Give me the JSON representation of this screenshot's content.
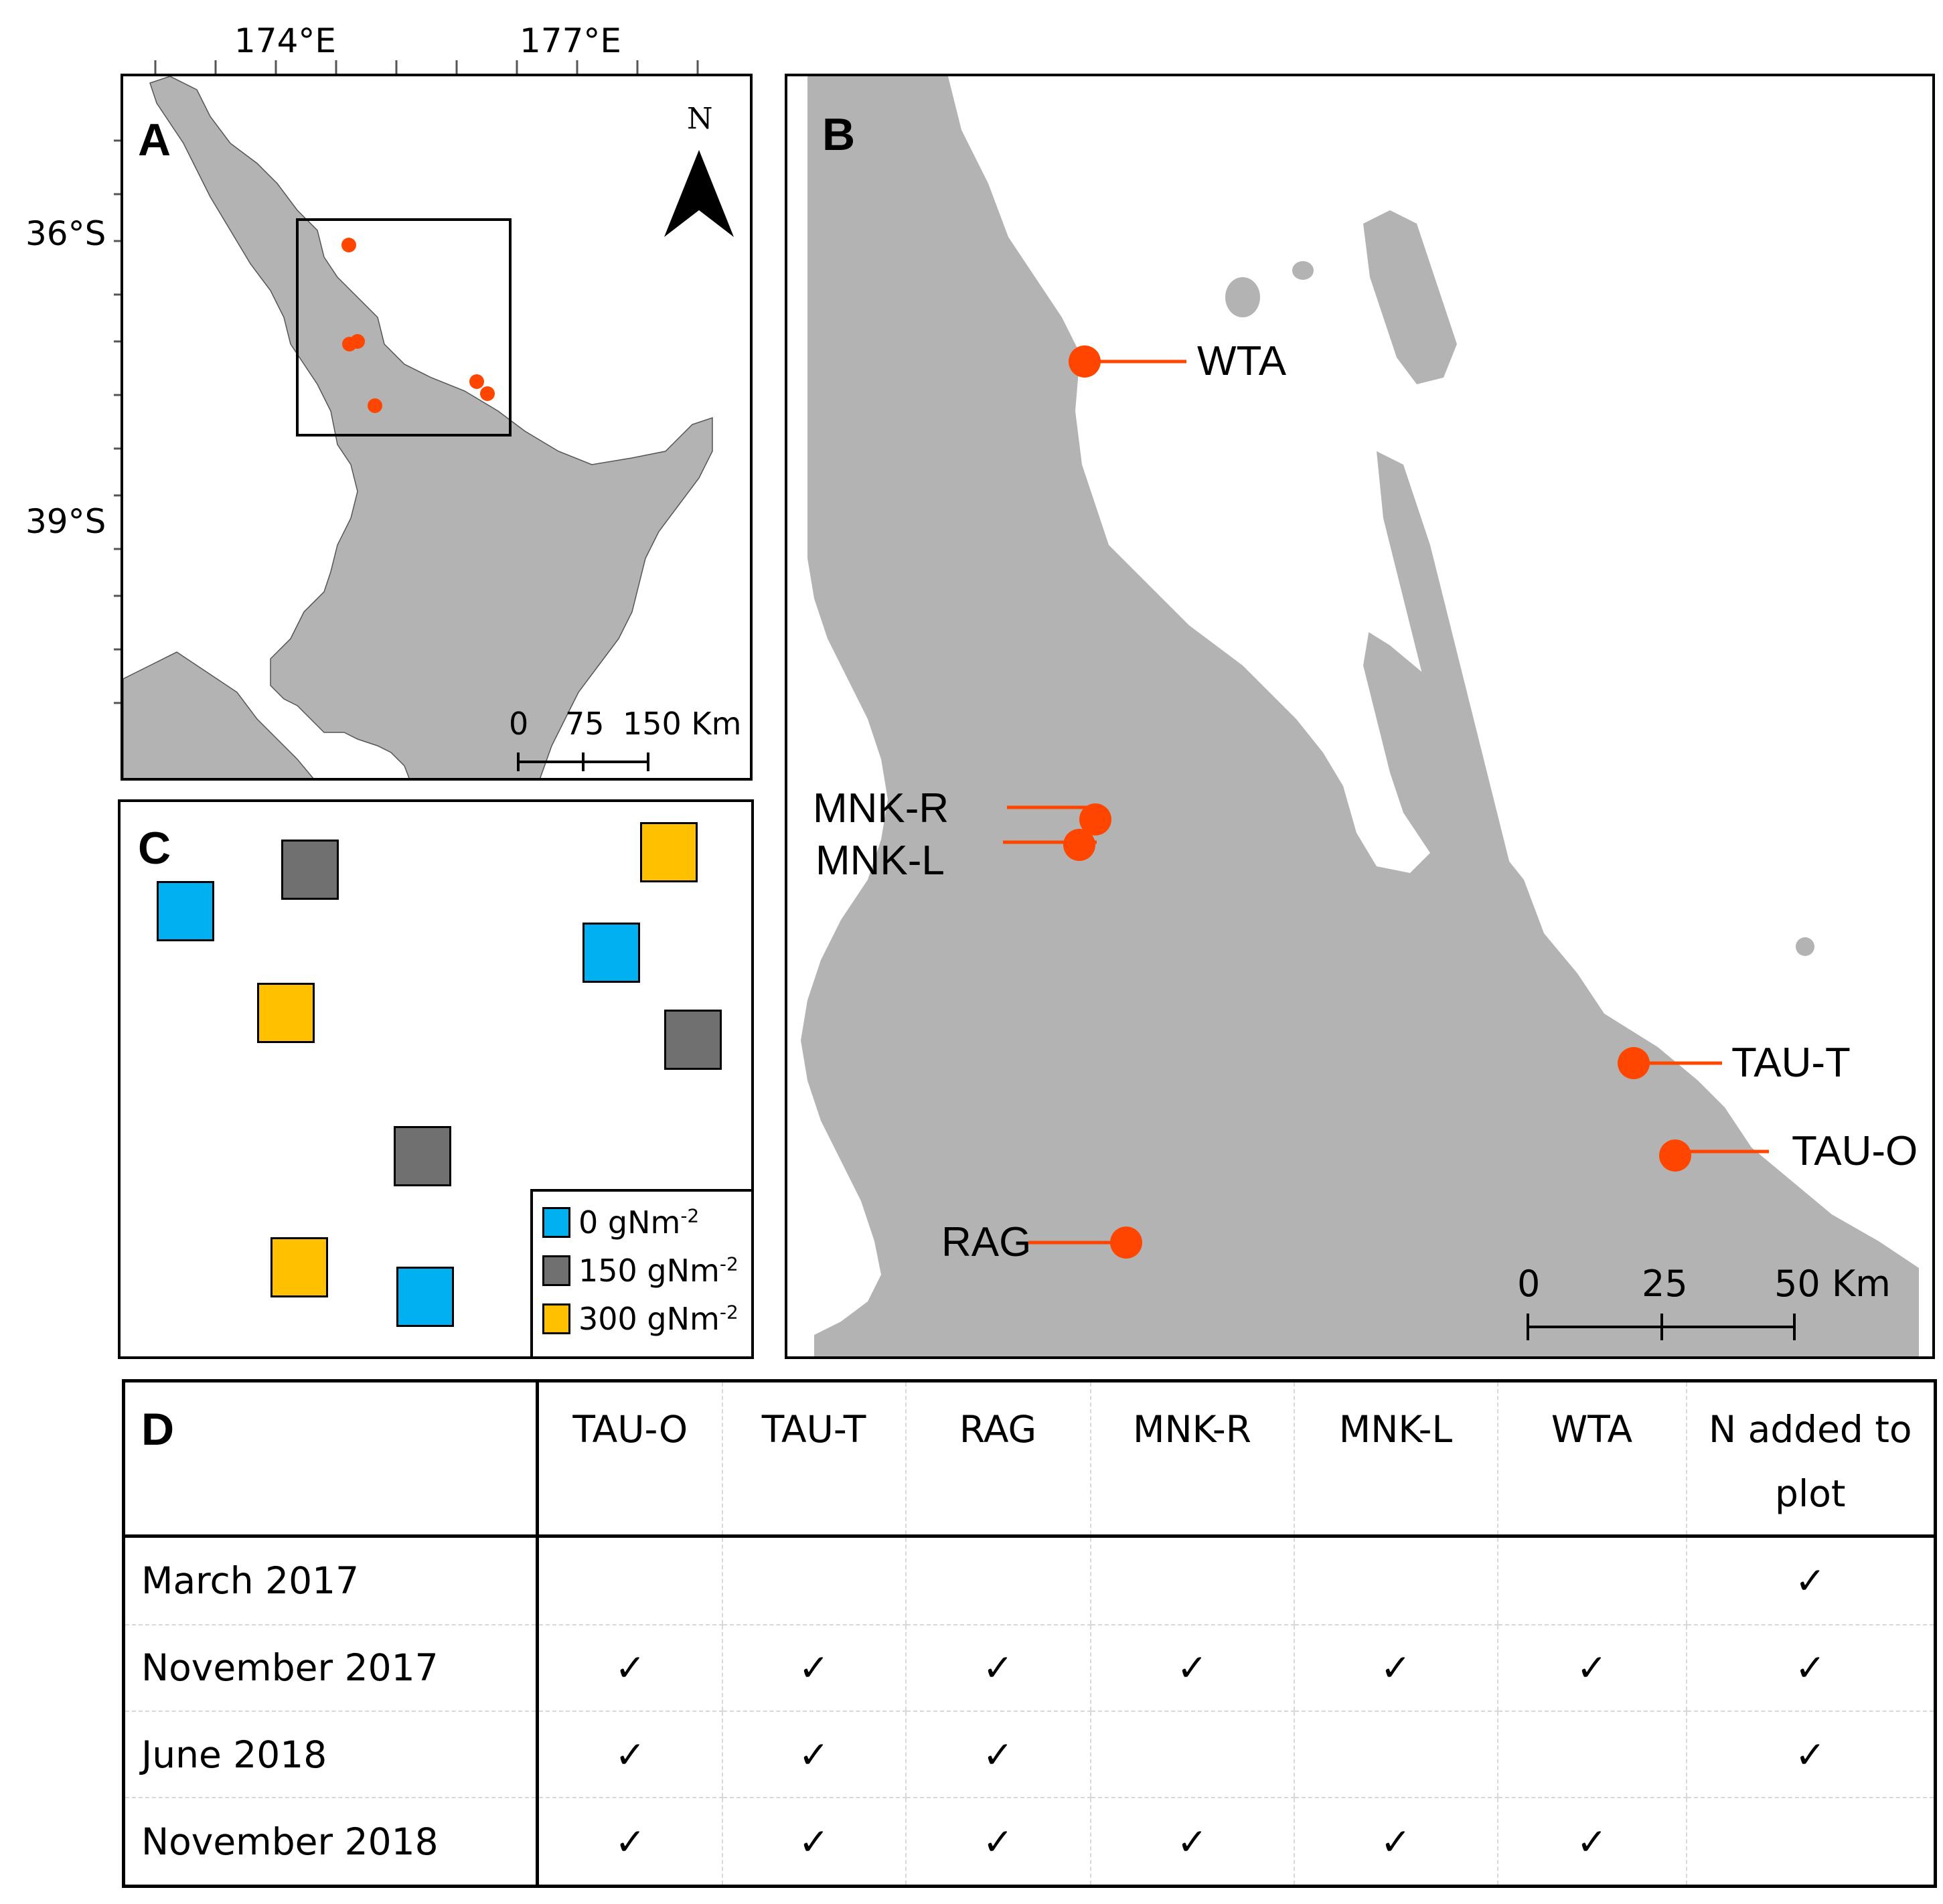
{
  "panel_a": {
    "letter": "A",
    "lon_labels": [
      "174°E",
      "177°E"
    ],
    "lat_labels": [
      "36°S",
      "39°S"
    ],
    "north_label": "N",
    "scale_labels": [
      "0",
      "75",
      "150 Km"
    ]
  },
  "panel_b": {
    "letter": "B",
    "sites": [
      "WTA",
      "MNK-R",
      "MNK-L",
      "TAU-T",
      "TAU-O",
      "RAG"
    ],
    "scale_labels": [
      "0",
      "25",
      "50 Km"
    ]
  },
  "panel_c": {
    "letter": "C",
    "legend": [
      {
        "label": "0 gNm",
        "sup": "-2",
        "color": "#00b0f0"
      },
      {
        "label": "150 gNm",
        "sup": "-2",
        "color": "#707070"
      },
      {
        "label": "300 gNm",
        "sup": "-2",
        "color": "#ffc000"
      }
    ]
  },
  "colors": {
    "land": "#b3b3b3",
    "site_marker": "#ff4500"
  },
  "panel_d": {
    "letter": "D",
    "columns": [
      "TAU-O",
      "TAU-T",
      "RAG",
      "MNK-R",
      "MNK-L",
      "WTA",
      "N added to plot"
    ],
    "rows": [
      {
        "label": "March 2017",
        "cells": [
          "",
          "",
          "",
          "",
          "",
          "",
          "✓"
        ]
      },
      {
        "label": "November 2017",
        "cells": [
          "✓",
          "✓",
          "✓",
          "✓",
          "✓",
          "✓",
          "✓"
        ]
      },
      {
        "label": "June 2018",
        "cells": [
          "✓",
          "✓",
          "✓",
          "",
          "",
          "",
          "✓"
        ]
      },
      {
        "label": "November 2018",
        "cells": [
          "✓",
          "✓",
          "✓",
          "✓",
          "✓",
          "✓",
          ""
        ]
      }
    ]
  }
}
